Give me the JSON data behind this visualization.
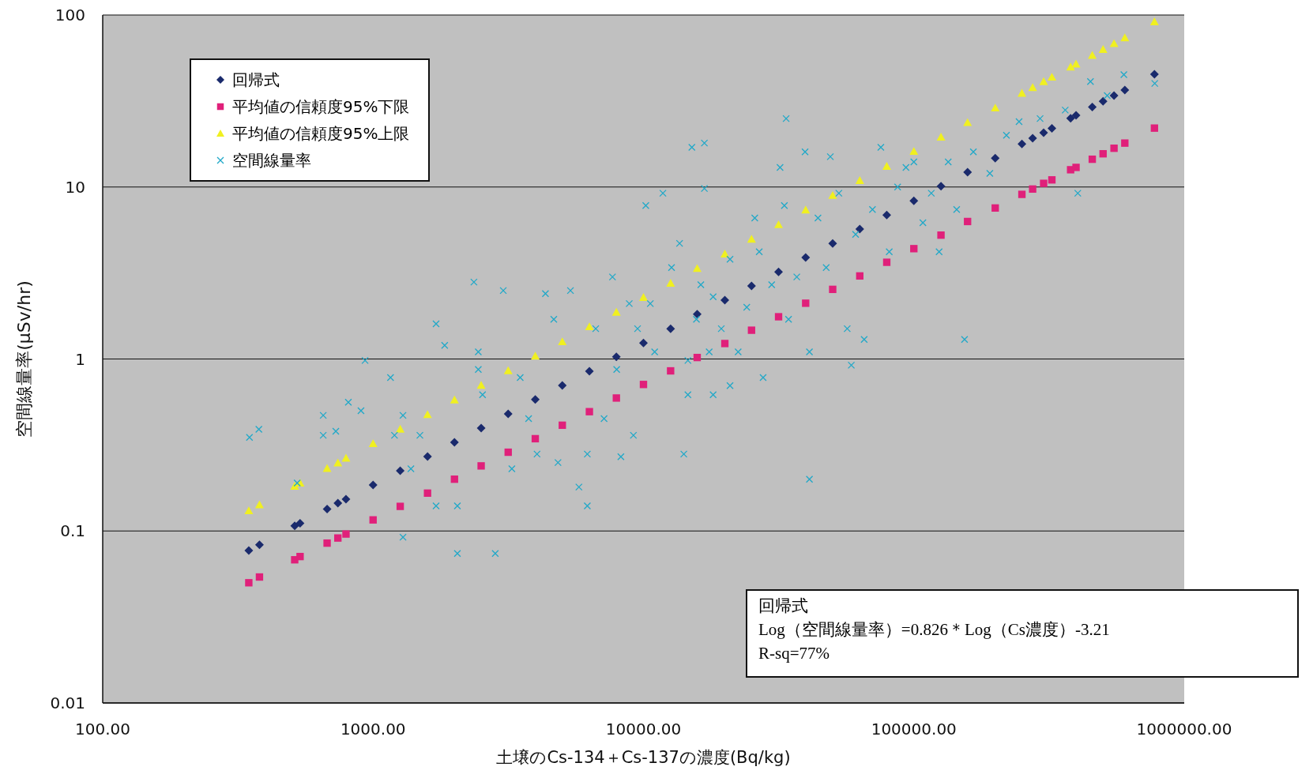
{
  "chart_data": {
    "type": "scatter",
    "xlabel": "土壌のCs-134＋Cs-137の濃度(Bq/kg)",
    "ylabel": "空間線量率(μSv/hr)",
    "log": "xy",
    "grid": "y",
    "legend": "top left",
    "xlim": [
      100,
      1000000
    ],
    "xticks": [
      {
        "value": 100,
        "label": "100.00"
      },
      {
        "value": 1000,
        "label": "1000.00"
      },
      {
        "value": 10000,
        "label": "10000.00"
      },
      {
        "value": 100000,
        "label": "100000.00"
      },
      {
        "value": 1000000,
        "label": "1000000.00"
      }
    ],
    "ylim": [
      0.01,
      100
    ],
    "yticks": [
      0.01,
      0.1,
      1,
      10,
      100
    ],
    "annotations": [
      "回帰式",
      "Log（空間線量率）=0.826＊Log（Cs濃度）-3.21",
      "R-sq=77%"
    ],
    "x": [
      347,
      380,
      513,
      537,
      676,
      741,
      794,
      1000,
      1260,
      1590,
      2000,
      2510,
      3160,
      3980,
      5010,
      6310,
      7940,
      10000,
      12600,
      15800,
      20000,
      25100,
      31600,
      39800,
      50100,
      63100,
      79400,
      100000,
      126000,
      158000,
      200000,
      251000,
      275000,
      302000,
      324000,
      380000,
      398000,
      457000,
      501000,
      550000,
      603000,
      776000
    ],
    "series": [
      {
        "name": "回帰式",
        "marker": "diamond",
        "color": "#1a2a6c",
        "values": [
          0.077,
          0.083,
          0.107,
          0.111,
          0.134,
          0.145,
          0.153,
          0.185,
          0.224,
          0.271,
          0.328,
          0.396,
          0.48,
          0.581,
          0.702,
          0.849,
          1.03,
          1.24,
          1.5,
          1.82,
          2.2,
          2.66,
          3.21,
          3.89,
          4.7,
          5.69,
          6.87,
          8.32,
          10.1,
          12.2,
          14.7,
          17.8,
          19.2,
          20.7,
          21.9,
          25.1,
          26.1,
          29.2,
          31.5,
          34,
          36.6,
          45.2
        ]
      },
      {
        "name": "平均値の信頼度95%下限",
        "marker": "square",
        "color": "#e0207a",
        "values": [
          0.05,
          0.054,
          0.068,
          0.071,
          0.085,
          0.091,
          0.096,
          0.116,
          0.139,
          0.166,
          0.2,
          0.239,
          0.287,
          0.344,
          0.412,
          0.494,
          0.593,
          0.711,
          0.853,
          1.02,
          1.23,
          1.47,
          1.76,
          2.11,
          2.54,
          3.04,
          3.65,
          4.38,
          5.25,
          6.3,
          7.55,
          9.06,
          9.73,
          10.5,
          11,
          12.6,
          13,
          14.5,
          15.6,
          16.8,
          18,
          22
        ]
      },
      {
        "name": "平均値の信頼度95%上限",
        "marker": "triangle",
        "color": "#f0f020",
        "values": [
          0.131,
          0.142,
          0.182,
          0.19,
          0.231,
          0.249,
          0.265,
          0.322,
          0.391,
          0.475,
          0.578,
          0.703,
          0.855,
          1.04,
          1.26,
          1.54,
          1.87,
          2.28,
          2.76,
          3.36,
          4.08,
          4.97,
          6.04,
          7.35,
          8.93,
          10.9,
          13.2,
          16.1,
          19.5,
          23.7,
          28.8,
          35.1,
          37.9,
          41,
          43.5,
          49.9,
          51.9,
          58.3,
          63.1,
          68.2,
          73.8,
          91.4
        ]
      },
      {
        "name": "空間線量率",
        "marker": "cross",
        "color": "#20a8c8",
        "x": [
          349,
          378,
          524,
          654,
          654,
          728,
          810,
          902,
          934,
          1160,
          1200,
          1290,
          1380,
          1490,
          1710,
          1840,
          2050,
          2050,
          2360,
          2450,
          2540,
          2830,
          3030,
          3260,
          3500,
          3760,
          4040,
          4340,
          4660,
          4830,
          5370,
          5770,
          6200,
          6660,
          7150,
          7680,
          8250,
          8860,
          9180,
          10200,
          10600,
          11000,
          11800,
          12700,
          13600,
          14100,
          14600,
          15700,
          16300,
          16800,
          17500,
          18100,
          19400,
          20900,
          22400,
          24100,
          25800,
          26800,
          27700,
          29800,
          32000,
          33200,
          34400,
          36900,
          39600,
          41100,
          44200,
          47400,
          49100,
          52800,
          56700,
          60900,
          65500,
          70300,
          75500,
          81100,
          87100,
          93500,
          100000,
          108000,
          116000,
          134000,
          144000,
          154000,
          166000,
          191000,
          220000,
          245000,
          293000,
          363000,
          450000,
          519000,
          598000,
          778000,
          41100,
          58700,
          33700,
          15100,
          16800,
          404000,
          124000,
          18100,
          9510,
          7960,
          6200,
          14600,
          20900,
          2450,
          1710,
          1290
        ],
        "values": [
          0.35,
          0.39,
          0.19,
          0.47,
          0.36,
          0.38,
          0.56,
          0.5,
          0.98,
          0.78,
          0.36,
          0.092,
          0.23,
          0.36,
          1.6,
          1.2,
          0.14,
          0.074,
          2.8,
          1.1,
          0.62,
          0.074,
          2.5,
          0.23,
          0.78,
          0.45,
          0.28,
          2.4,
          1.7,
          0.25,
          2.5,
          0.18,
          0.28,
          1.5,
          0.45,
          3,
          0.27,
          2.1,
          0.36,
          7.8,
          2.1,
          1.1,
          9.2,
          3.4,
          4.7,
          0.28,
          0.98,
          1.7,
          2.7,
          9.8,
          1.1,
          0.62,
          1.5,
          3.8,
          1.1,
          2,
          6.6,
          4.2,
          0.78,
          2.7,
          13,
          7.8,
          1.7,
          3,
          16,
          1.1,
          6.6,
          3.4,
          15,
          9.2,
          1.5,
          5.3,
          1.3,
          7.4,
          17,
          4.2,
          10,
          13,
          14,
          6.2,
          9.2,
          14,
          7.4,
          1.3,
          16,
          12,
          20,
          24,
          25,
          28,
          41,
          34,
          45,
          40,
          0.2,
          0.92,
          25,
          17,
          18,
          9.2,
          4.2,
          2.3,
          1.5,
          0.87,
          0.14,
          0.62,
          0.7,
          0.87,
          0.14,
          0.47
        ]
      }
    ]
  }
}
